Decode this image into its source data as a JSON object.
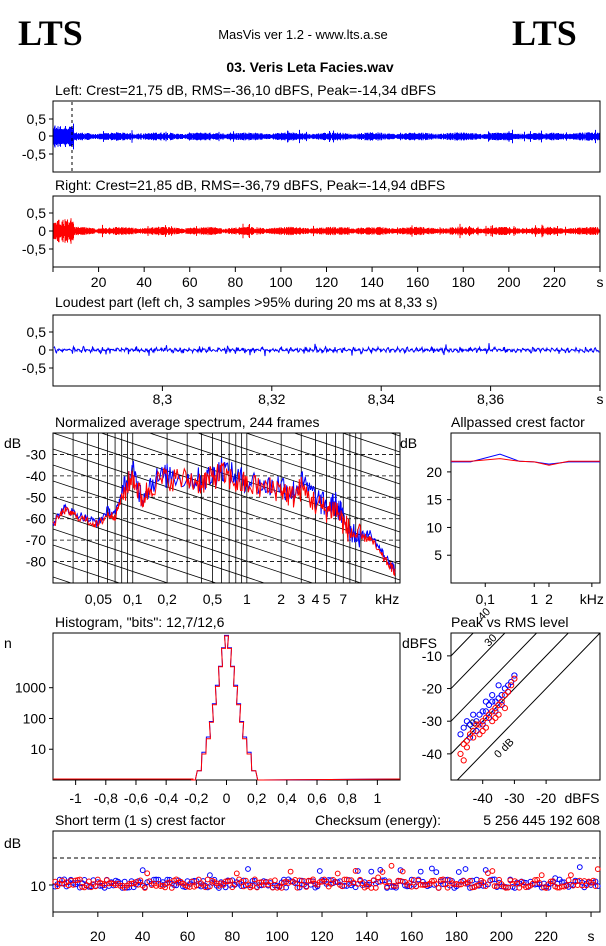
{
  "header": {
    "logo_left": "LTS",
    "logo_right": "LTS",
    "app_title": "MasVis ver 1.2 - www.lts.a.se",
    "file_title": "03. Veris Leta Facies.wav"
  },
  "colors": {
    "left": "#0000ff",
    "right": "#ff0000",
    "grid": "#000000"
  },
  "chart_data": [
    {
      "id": "left-waveform",
      "type": "line",
      "title": "Left: Crest=21,75 dB, RMS=-36,10 dBFS, Peak=-14,34 dBFS",
      "ylim": [
        -1,
        1
      ],
      "yticks": [
        "0,5",
        "0",
        "-0,5"
      ],
      "ytick_values": [
        0.5,
        0,
        -0.5
      ],
      "xlim": [
        0,
        240
      ],
      "marker_x": 8.33
    },
    {
      "id": "right-waveform",
      "type": "line",
      "title": "Right: Crest=21,85 dB, RMS=-36,79 dBFS, Peak=-14,94 dBFS",
      "ylim": [
        -1,
        1
      ],
      "yticks": [
        "0,5",
        "0",
        "-0,5"
      ],
      "ytick_values": [
        0.5,
        0,
        -0.5
      ],
      "xlim": [
        0,
        240
      ],
      "xticks": [
        "20",
        "40",
        "60",
        "80",
        "100",
        "120",
        "140",
        "160",
        "180",
        "200",
        "220",
        "s"
      ],
      "xtick_values": [
        20,
        40,
        60,
        80,
        100,
        120,
        140,
        160,
        180,
        200,
        220,
        240
      ]
    },
    {
      "id": "loudest-part",
      "type": "line",
      "title": "Loudest part (left  ch, 3 samples >95% during 20 ms at 8,33 s)",
      "ylim": [
        -1,
        1
      ],
      "yticks": [
        "0,5",
        "0",
        "-0,5"
      ],
      "ytick_values": [
        0.5,
        0,
        -0.5
      ],
      "xlim": [
        8.28,
        8.38
      ],
      "xticks": [
        "8,3",
        "8,32",
        "8,34",
        "8,36",
        "s"
      ],
      "xtick_values": [
        8.3,
        8.32,
        8.34,
        8.36,
        8.38
      ]
    },
    {
      "id": "avg-spectrum",
      "type": "line",
      "title": "Normalized average spectrum, 244 frames",
      "ylabel": "dB",
      "ylim": [
        -90,
        -20
      ],
      "yticks": [
        "-30",
        "-40",
        "-50",
        "-60",
        "-70",
        "-80"
      ],
      "ytick_values": [
        -30,
        -40,
        -50,
        -60,
        -70,
        -80
      ],
      "xscale": "log",
      "xlim": [
        0.02,
        22
      ],
      "xticks": [
        "0,05",
        "0,1",
        "0,2",
        "0,5",
        "1",
        "2",
        "3",
        "4",
        "5",
        "7",
        "kHz"
      ],
      "xtick_values": [
        0.05,
        0.1,
        0.2,
        0.5,
        1,
        2,
        3,
        4,
        5,
        7,
        17
      ],
      "series": [
        {
          "color": "#0000ff",
          "x": [
            0.02,
            0.025,
            0.03,
            0.04,
            0.05,
            0.06,
            0.07,
            0.08,
            0.1,
            0.12,
            0.15,
            0.2,
            0.3,
            0.4,
            0.5,
            0.6,
            0.8,
            1,
            1.5,
            2,
            2.5,
            3,
            4,
            5,
            6,
            7,
            8,
            10,
            12,
            15,
            18,
            20
          ],
          "values": [
            -62,
            -55,
            -57,
            -60,
            -62,
            -56,
            -58,
            -48,
            -38,
            -50,
            -42,
            -40,
            -41,
            -42,
            -40,
            -36,
            -41,
            -42,
            -45,
            -44,
            -48,
            -43,
            -50,
            -55,
            -53,
            -60,
            -65,
            -68,
            -67,
            -75,
            -81,
            -84
          ]
        },
        {
          "color": "#ff0000",
          "x": [
            0.02,
            0.025,
            0.03,
            0.04,
            0.05,
            0.06,
            0.07,
            0.08,
            0.1,
            0.12,
            0.15,
            0.2,
            0.3,
            0.4,
            0.5,
            0.6,
            0.8,
            1,
            1.5,
            2,
            2.5,
            3,
            4,
            5,
            6,
            7,
            8,
            10,
            12,
            15,
            18,
            20
          ],
          "values": [
            -63,
            -56,
            -58,
            -61,
            -63,
            -58,
            -59,
            -50,
            -40,
            -51,
            -44,
            -41,
            -42,
            -43,
            -41,
            -39,
            -43,
            -44,
            -46,
            -46,
            -50,
            -46,
            -53,
            -56,
            -55,
            -62,
            -66,
            -69,
            -69,
            -77,
            -82,
            -85
          ]
        }
      ]
    },
    {
      "id": "allpassed-crest",
      "type": "line",
      "title": "Allpassed crest factor",
      "ylabel": "dB",
      "ylim": [
        0,
        27
      ],
      "yticks": [
        "20",
        "15",
        "10",
        "5"
      ],
      "ytick_values": [
        20,
        15,
        10,
        5
      ],
      "xscale": "log",
      "xlim": [
        0.02,
        22
      ],
      "xticks": [
        "0,1",
        "1",
        "2",
        "kHz"
      ],
      "xtick_values": [
        0.1,
        1,
        2,
        15
      ],
      "series": [
        {
          "color": "#0000ff",
          "x": [
            0.02,
            0.05,
            0.2,
            0.5,
            1,
            2,
            5,
            22
          ],
          "values": [
            21.8,
            21.8,
            23.2,
            21.9,
            21.8,
            21.4,
            21.8,
            21.8
          ]
        },
        {
          "color": "#ff0000",
          "x": [
            0.02,
            0.05,
            0.2,
            0.5,
            1,
            2,
            5,
            22
          ],
          "values": [
            21.9,
            21.9,
            22.4,
            21.9,
            21.8,
            21.2,
            21.9,
            21.9
          ]
        }
      ]
    },
    {
      "id": "histogram",
      "type": "line",
      "title": "Histogram, \"bits\": 12,7/12,6",
      "ylabel": "n",
      "yscale": "log",
      "ylim": [
        1,
        60000
      ],
      "yticks": [
        "1000",
        "100",
        "10"
      ],
      "ytick_values": [
        1000,
        100,
        10
      ],
      "xlim": [
        -1.15,
        1.15
      ],
      "xticks": [
        "-1",
        "-0,8",
        "-0,6",
        "-0,4",
        "-0,2",
        "0",
        "0,2",
        "0,4",
        "0,6",
        "0,8",
        "1"
      ],
      "xtick_values": [
        -1,
        -0.8,
        -0.6,
        -0.4,
        -0.2,
        0,
        0.2,
        0.4,
        0.6,
        0.8,
        1
      ],
      "series": [
        {
          "color": "#0000ff",
          "x": [
            -0.22,
            -0.18,
            -0.15,
            -0.12,
            -0.1,
            -0.08,
            -0.06,
            -0.04,
            -0.02,
            0,
            0.02,
            0.04,
            0.06,
            0.08,
            0.1,
            0.12,
            0.15,
            0.18,
            0.22
          ],
          "values": [
            1,
            2,
            8,
            25,
            80,
            300,
            1200,
            5000,
            20000,
            50000,
            20000,
            5000,
            1200,
            300,
            80,
            25,
            8,
            2,
            1
          ]
        },
        {
          "color": "#ff0000",
          "x": [
            -0.22,
            -0.18,
            -0.15,
            -0.12,
            -0.1,
            -0.08,
            -0.06,
            -0.04,
            -0.02,
            0,
            0.02,
            0.04,
            0.06,
            0.08,
            0.1,
            0.12,
            0.15,
            0.18,
            0.22
          ],
          "values": [
            1,
            2,
            7,
            22,
            75,
            280,
            1100,
            4800,
            19000,
            48000,
            19000,
            4800,
            1100,
            280,
            75,
            22,
            7,
            2,
            1
          ]
        }
      ]
    },
    {
      "id": "peak-vs-rms",
      "type": "scatter",
      "title": "Peak vs RMS level",
      "ylabel": "dBFS",
      "xlabel": "dBFS",
      "xlim": [
        -50,
        -3
      ],
      "ylim": [
        -48,
        -3
      ],
      "yticks": [
        "-10",
        "-20",
        "-30",
        "-40"
      ],
      "ytick_values": [
        -10,
        -20,
        -30,
        -40
      ],
      "xticks": [
        "-40",
        "-30",
        "-20"
      ],
      "xtick_values": [
        -40,
        -30,
        -20
      ],
      "diagonal_labels": [
        "40",
        "30",
        "10",
        "0 dB"
      ],
      "diagonal_offsets": [
        40,
        30,
        20,
        10,
        0
      ],
      "series": [
        {
          "color": "#0000ff",
          "x": [
            -47,
            -46,
            -45,
            -44,
            -43,
            -42,
            -41,
            -40,
            -39,
            -38,
            -37,
            -36,
            -35,
            -34,
            -33,
            -32,
            -31,
            -30,
            -44,
            -42,
            -40,
            -38,
            -36,
            -34,
            -32,
            -39,
            -37,
            -35
          ],
          "values": [
            -34,
            -32,
            -30,
            -31,
            -28,
            -30,
            -28,
            -27,
            -27,
            -25,
            -24,
            -24,
            -23,
            -22,
            -20,
            -19,
            -18,
            -16,
            -35,
            -33,
            -31,
            -29,
            -27,
            -25,
            -21,
            -24,
            -22,
            -19
          ]
        },
        {
          "color": "#ff0000",
          "x": [
            -47,
            -46,
            -45,
            -44,
            -43,
            -42,
            -41,
            -40,
            -39,
            -38,
            -37,
            -36,
            -35,
            -34,
            -33,
            -32,
            -31,
            -30,
            -45,
            -43,
            -41,
            -39,
            -37,
            -35,
            -33,
            -46,
            -40,
            -36
          ],
          "values": [
            -40,
            -37,
            -36,
            -34,
            -33,
            -31,
            -31,
            -30,
            -29,
            -28,
            -27,
            -26,
            -25,
            -24,
            -22,
            -21,
            -19,
            -17,
            -38,
            -35,
            -34,
            -32,
            -30,
            -28,
            -26,
            -42,
            -33,
            -29
          ]
        }
      ]
    },
    {
      "id": "short-term-crest",
      "type": "scatter",
      "title": "Short term (1 s) crest factor",
      "ylabel": "dB",
      "ylim": [
        0,
        30
      ],
      "yticks": [
        "10"
      ],
      "ytick_values": [
        10
      ],
      "dashed_level": 20,
      "xlim": [
        0,
        244
      ],
      "xticks": [
        "20",
        "40",
        "60",
        "80",
        "100",
        "120",
        "140",
        "160",
        "180",
        "200",
        "220",
        "s"
      ],
      "xtick_values": [
        20,
        40,
        60,
        80,
        100,
        120,
        140,
        160,
        180,
        200,
        220,
        240
      ],
      "checksum_label": "Checksum (energy):",
      "checksum_value": "5 256 445 192 608"
    }
  ]
}
